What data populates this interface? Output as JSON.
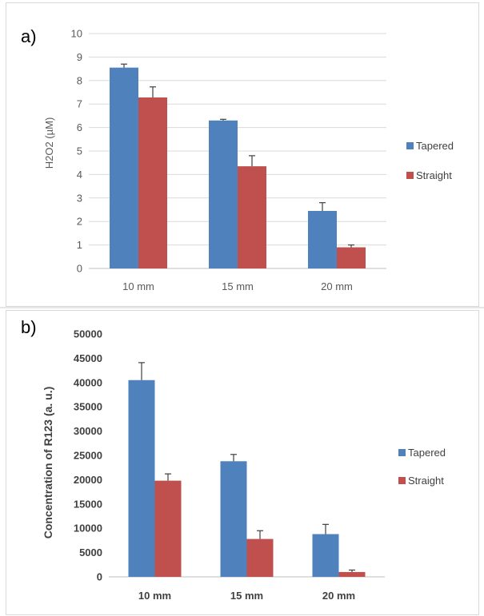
{
  "chart_data": [
    {
      "type": "bar",
      "panel_label": "a)",
      "categories": [
        "10 mm",
        "15 mm",
        "20 mm"
      ],
      "series": [
        {
          "name": "Tapered",
          "color": "#4f81bd",
          "values": [
            8.55,
            6.3,
            2.45
          ],
          "errors": [
            0.15,
            0.05,
            0.35
          ]
        },
        {
          "name": "Straight",
          "color": "#c0504d",
          "values": [
            7.28,
            4.35,
            0.9
          ],
          "errors": [
            0.45,
            0.45,
            0.1
          ]
        }
      ],
      "xlabel": "",
      "ylabel": "H2O2 (µM)",
      "ylim": [
        0,
        10
      ],
      "yticks": [
        "0",
        "1",
        "2",
        "3",
        "4",
        "5",
        "6",
        "7",
        "8",
        "9",
        "10"
      ],
      "grid": true,
      "legend_position": "right"
    },
    {
      "type": "bar",
      "panel_label": "b)",
      "categories": [
        "10 mm",
        "15 mm",
        "20 mm"
      ],
      "series": [
        {
          "name": "Tapered",
          "color": "#4f81bd",
          "values": [
            40500,
            23800,
            8800
          ],
          "errors": [
            3600,
            1400,
            2000
          ]
        },
        {
          "name": "Straight",
          "color": "#c0504d",
          "values": [
            19800,
            7800,
            1000
          ],
          "errors": [
            1400,
            1700,
            400
          ]
        }
      ],
      "xlabel": "",
      "ylabel": "Concentration of R123 (a. u.)",
      "ylim": [
        0,
        50000
      ],
      "yticks": [
        "0",
        "5000",
        "10000",
        "15000",
        "20000",
        "25000",
        "30000",
        "35000",
        "40000",
        "45000",
        "50000"
      ],
      "grid": false,
      "legend_position": "right"
    }
  ]
}
